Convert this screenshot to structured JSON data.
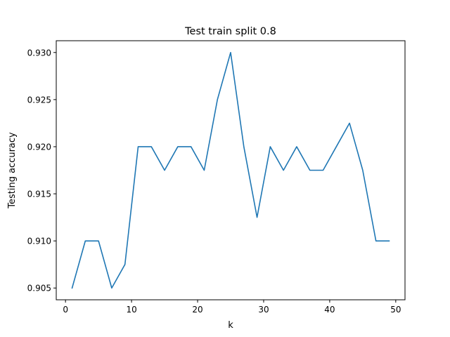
{
  "chart_data": {
    "type": "line",
    "title": "Test train split 0.8",
    "xlabel": "k",
    "ylabel": "Testing accuracy",
    "xlim": [
      -1.4,
      51.4
    ],
    "ylim": [
      0.90375,
      0.93125
    ],
    "xticks": [
      0,
      10,
      20,
      30,
      40,
      50
    ],
    "xtick_labels": [
      "0",
      "10",
      "20",
      "30",
      "40",
      "50"
    ],
    "yticks": [
      0.905,
      0.91,
      0.915,
      0.92,
      0.925,
      0.93
    ],
    "ytick_labels": [
      "0.905",
      "0.910",
      "0.915",
      "0.920",
      "0.925",
      "0.930"
    ],
    "grid": false,
    "series": [
      {
        "color": "#1f77b4",
        "x": [
          1,
          3,
          5,
          7,
          9,
          11,
          13,
          15,
          17,
          19,
          21,
          23,
          25,
          27,
          29,
          31,
          33,
          35,
          37,
          39,
          41,
          43,
          45,
          47,
          49
        ],
        "y": [
          0.905,
          0.91,
          0.91,
          0.905,
          0.9075,
          0.92,
          0.92,
          0.9175,
          0.92,
          0.92,
          0.9175,
          0.925,
          0.93,
          0.92,
          0.9125,
          0.92,
          0.9175,
          0.92,
          0.9175,
          0.9175,
          0.92,
          0.9225,
          0.9175,
          0.91,
          0.91
        ]
      }
    ]
  }
}
